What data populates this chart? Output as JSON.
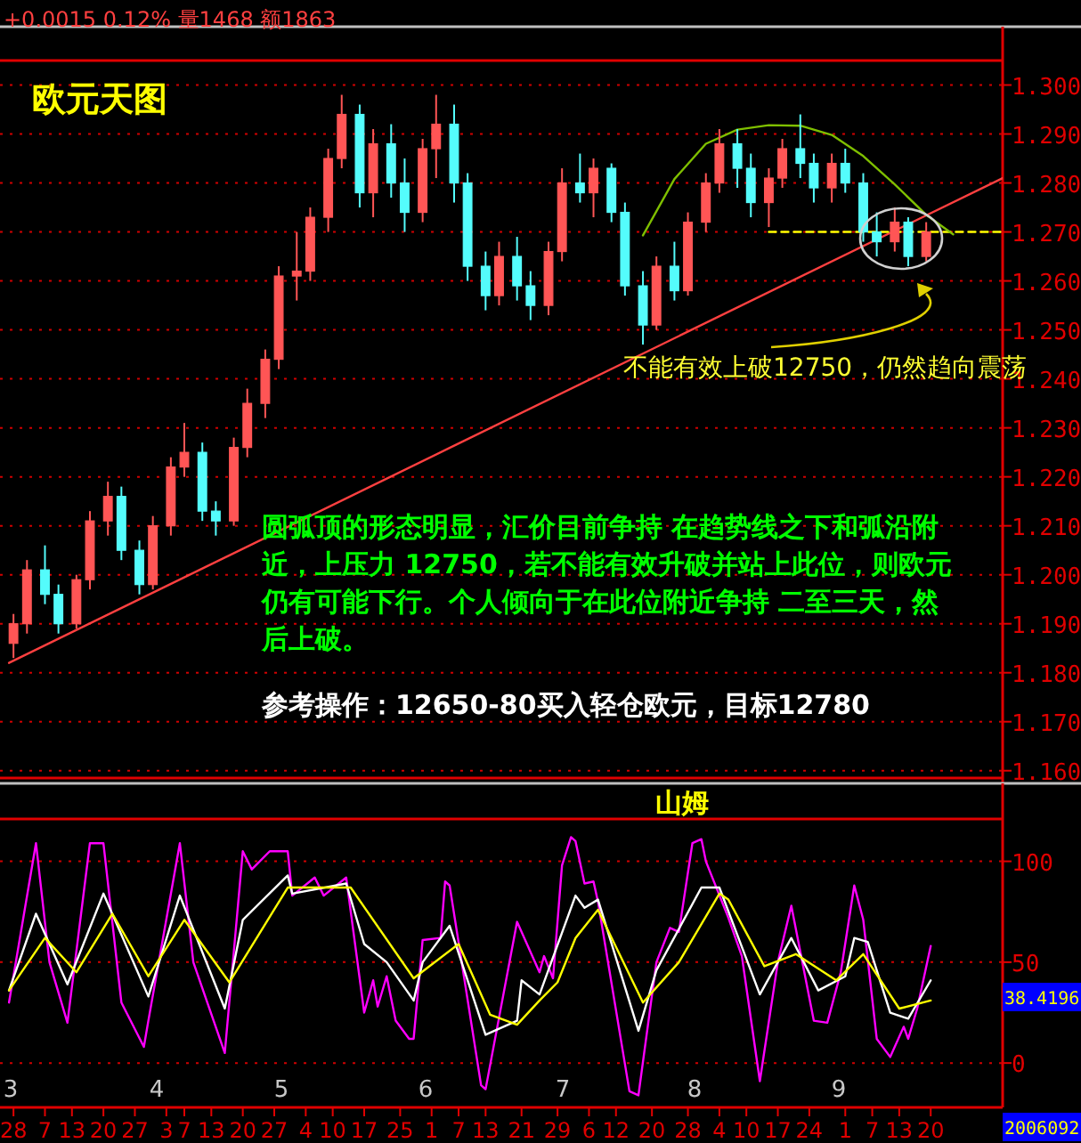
{
  "chart_data": [
    {
      "type": "candlestick",
      "title": "欧元天图",
      "x": [
        "2006-02-28",
        "2006-03-03",
        "2006-03-07",
        "2006-03-10",
        "2006-03-14",
        "2006-03-17",
        "2006-03-21",
        "2006-03-24",
        "2006-03-28",
        "2006-03-31",
        "2006-04-04",
        "2006-04-07",
        "2006-04-11",
        "2006-04-14",
        "2006-04-18",
        "2006-04-21",
        "2006-04-25",
        "2006-04-28",
        "2006-05-02",
        "2006-05-05",
        "2006-05-09",
        "2006-05-12",
        "2006-05-16",
        "2006-05-19",
        "2006-05-23",
        "2006-05-26",
        "2006-05-30",
        "2006-06-02",
        "2006-06-06",
        "2006-06-09",
        "2006-06-13",
        "2006-06-16",
        "2006-06-20",
        "2006-06-23",
        "2006-06-27",
        "2006-06-30",
        "2006-07-04",
        "2006-07-07",
        "2006-07-11",
        "2006-07-14",
        "2006-07-18",
        "2006-07-21",
        "2006-07-25",
        "2006-07-28",
        "2006-08-01",
        "2006-08-04",
        "2006-08-08",
        "2006-08-11",
        "2006-08-15",
        "2006-08-18",
        "2006-08-22",
        "2006-08-25",
        "2006-08-29",
        "2006-09-01",
        "2006-09-05",
        "2006-09-08",
        "2006-09-12",
        "2006-09-15",
        "2006-09-19"
      ],
      "ohlc": [
        [
          1.186,
          1.192,
          1.183,
          1.19
        ],
        [
          1.19,
          1.203,
          1.188,
          1.201
        ],
        [
          1.201,
          1.206,
          1.194,
          1.196
        ],
        [
          1.196,
          1.198,
          1.188,
          1.19
        ],
        [
          1.19,
          1.2,
          1.189,
          1.199
        ],
        [
          1.199,
          1.213,
          1.197,
          1.211
        ],
        [
          1.211,
          1.219,
          1.208,
          1.216
        ],
        [
          1.216,
          1.218,
          1.203,
          1.205
        ],
        [
          1.205,
          1.207,
          1.196,
          1.198
        ],
        [
          1.198,
          1.212,
          1.197,
          1.21
        ],
        [
          1.21,
          1.224,
          1.208,
          1.222
        ],
        [
          1.222,
          1.231,
          1.22,
          1.225
        ],
        [
          1.225,
          1.227,
          1.211,
          1.213
        ],
        [
          1.213,
          1.215,
          1.208,
          1.211
        ],
        [
          1.211,
          1.228,
          1.21,
          1.226
        ],
        [
          1.226,
          1.238,
          1.224,
          1.235
        ],
        [
          1.235,
          1.246,
          1.232,
          1.244
        ],
        [
          1.244,
          1.263,
          1.242,
          1.261
        ],
        [
          1.261,
          1.27,
          1.256,
          1.262
        ],
        [
          1.262,
          1.275,
          1.26,
          1.273
        ],
        [
          1.273,
          1.287,
          1.27,
          1.285
        ],
        [
          1.285,
          1.298,
          1.283,
          1.294
        ],
        [
          1.294,
          1.296,
          1.275,
          1.278
        ],
        [
          1.278,
          1.291,
          1.273,
          1.288
        ],
        [
          1.288,
          1.292,
          1.277,
          1.28
        ],
        [
          1.28,
          1.285,
          1.27,
          1.274
        ],
        [
          1.274,
          1.289,
          1.272,
          1.287
        ],
        [
          1.287,
          1.298,
          1.281,
          1.292
        ],
        [
          1.292,
          1.296,
          1.276,
          1.28
        ],
        [
          1.28,
          1.282,
          1.26,
          1.263
        ],
        [
          1.263,
          1.266,
          1.254,
          1.257
        ],
        [
          1.257,
          1.268,
          1.255,
          1.265
        ],
        [
          1.265,
          1.269,
          1.256,
          1.259
        ],
        [
          1.259,
          1.262,
          1.252,
          1.255
        ],
        [
          1.255,
          1.268,
          1.253,
          1.266
        ],
        [
          1.266,
          1.283,
          1.264,
          1.28
        ],
        [
          1.28,
          1.286,
          1.276,
          1.278
        ],
        [
          1.278,
          1.285,
          1.273,
          1.283
        ],
        [
          1.283,
          1.284,
          1.272,
          1.274
        ],
        [
          1.274,
          1.276,
          1.257,
          1.259
        ],
        [
          1.259,
          1.262,
          1.247,
          1.251
        ],
        [
          1.251,
          1.265,
          1.25,
          1.263
        ],
        [
          1.263,
          1.268,
          1.256,
          1.258
        ],
        [
          1.258,
          1.274,
          1.257,
          1.272
        ],
        [
          1.272,
          1.282,
          1.27,
          1.28
        ],
        [
          1.28,
          1.291,
          1.278,
          1.288
        ],
        [
          1.288,
          1.291,
          1.279,
          1.283
        ],
        [
          1.283,
          1.286,
          1.273,
          1.276
        ],
        [
          1.276,
          1.283,
          1.271,
          1.281
        ],
        [
          1.281,
          1.289,
          1.279,
          1.287
        ],
        [
          1.287,
          1.294,
          1.281,
          1.284
        ],
        [
          1.284,
          1.286,
          1.276,
          1.279
        ],
        [
          1.279,
          1.286,
          1.276,
          1.284
        ],
        [
          1.284,
          1.287,
          1.278,
          1.28
        ],
        [
          1.28,
          1.282,
          1.268,
          1.27
        ],
        [
          1.27,
          1.274,
          1.265,
          1.268
        ],
        [
          1.268,
          1.275,
          1.266,
          1.272
        ],
        [
          1.272,
          1.273,
          1.263,
          1.265
        ],
        [
          1.265,
          1.272,
          1.264,
          1.27
        ]
      ],
      "colors": [
        "#ff5555",
        "#ff5555",
        "#54fcfc",
        "#54fcfc",
        "#ff5555",
        "#ff5555",
        "#ff5555",
        "#54fcfc",
        "#54fcfc",
        "#ff5555",
        "#ff5555",
        "#ff5555",
        "#54fcfc",
        "#54fcfc",
        "#ff5555",
        "#ff5555",
        "#ff5555",
        "#ff5555",
        "#ff5555",
        "#ff5555",
        "#ff5555",
        "#ff5555",
        "#54fcfc",
        "#ff5555",
        "#54fcfc",
        "#54fcfc",
        "#ff5555",
        "#ff5555",
        "#54fcfc",
        "#54fcfc",
        "#54fcfc",
        "#ff5555",
        "#54fcfc",
        "#54fcfc",
        "#ff5555",
        "#ff5555",
        "#54fcfc",
        "#ff5555",
        "#54fcfc",
        "#54fcfc",
        "#54fcfc",
        "#ff5555",
        "#54fcfc",
        "#ff5555",
        "#ff5555",
        "#ff5555",
        "#54fcfc",
        "#54fcfc",
        "#ff5555",
        "#ff5555",
        "#54fcfc",
        "#54fcfc",
        "#ff5555",
        "#54fcfc",
        "#54fcfc",
        "#54fcfc",
        "#ff5555",
        "#54fcfc",
        "#ff5555"
      ],
      "series": [
        {
          "type": "line",
          "color": "#ff4040",
          "x": [
            "2006-02-27",
            "2006-10-06"
          ],
          "values": [
            1.182,
            1.281
          ]
        },
        {
          "type": "line",
          "color": "#ffff00",
          "line_style": "dashed",
          "x": [
            "2006-08-15",
            "2006-10-06"
          ],
          "values": [
            1.27,
            1.27
          ]
        },
        {
          "type": "line",
          "color": "#7fbf00",
          "x": [
            "2006-07-18",
            "2006-07-25",
            "2006-08-01",
            "2006-08-08",
            "2006-08-15",
            "2006-08-22",
            "2006-08-29",
            "2006-09-05",
            "2006-09-12",
            "2006-09-19",
            "2006-09-25"
          ],
          "values": [
            1.2693,
            1.2808,
            1.288,
            1.2909,
            1.2918,
            1.2917,
            1.2898,
            1.2855,
            1.2797,
            1.2735,
            1.2695
          ]
        }
      ],
      "xlim": [
        "2006-02-25",
        "2006-10-06"
      ],
      "ylim": [
        1.1585,
        1.305
      ],
      "yticks": [
        {
          "value": 1.16,
          "label": "1.160"
        },
        {
          "value": 1.17,
          "label": "1.170"
        },
        {
          "value": 1.18,
          "label": "1.180"
        },
        {
          "value": 1.19,
          "label": "1.190"
        },
        {
          "value": 1.2,
          "label": "1.200"
        },
        {
          "value": 1.21,
          "label": "1.210"
        },
        {
          "value": 1.22,
          "label": "1.220"
        },
        {
          "value": 1.23,
          "label": "1.230"
        },
        {
          "value": 1.24,
          "label": "1.240"
        },
        {
          "value": 1.25,
          "label": "1.250"
        },
        {
          "value": 1.26,
          "label": "1.260"
        },
        {
          "value": 1.27,
          "label": "1.270"
        },
        {
          "value": 1.28,
          "label": "1.280"
        },
        {
          "value": 1.29,
          "label": "1.290"
        },
        {
          "value": 1.3,
          "label": "1.300"
        }
      ],
      "tick_labels": "y",
      "grid": "y",
      "annotations": [
        "+0.0015 0.12% 量1468 额1863",
        "不能有效上破12750，仍然趋向震荡",
        "圆弧顶的形态明显，汇价目前争持 在趋势线之下和弧沿附近，上压力 12750，若不能有效升破并站上此位，则欧元仍有可能下行。个人倾向于在此位附近争持 二至三天，然后上破。",
        "参考操作：12650-80买入轻仓欧元，目标12780"
      ]
    },
    {
      "type": "line",
      "title": "山姆",
      "series": [
        {
          "color": "#ff00ff",
          "x": [
            "2006-02-27",
            "2006-03-05",
            "2006-03-08",
            "2006-03-12",
            "2006-03-17",
            "2006-03-20",
            "2006-03-24",
            "2006-03-29",
            "2006-03-30",
            "2006-04-06",
            "2006-04-09",
            "2006-04-16",
            "2006-04-20",
            "2006-04-22",
            "2006-04-26",
            "2006-04-30",
            "2006-05-01",
            "2006-05-06",
            "2006-05-08",
            "2006-05-13",
            "2006-05-17",
            "2006-05-19",
            "2006-05-20",
            "2006-05-22",
            "2006-05-24",
            "2006-05-27",
            "2006-05-28",
            "2006-05-30",
            "2006-06-03",
            "2006-06-04",
            "2006-06-05",
            "2006-06-12",
            "2006-06-13",
            "2006-06-20",
            "2006-06-25",
            "2006-06-26",
            "2006-06-28",
            "2006-06-30",
            "2006-07-02",
            "2006-07-03",
            "2006-07-05",
            "2006-07-07",
            "2006-07-08",
            "2006-07-15",
            "2006-07-17",
            "2006-07-21",
            "2006-07-24",
            "2006-07-26",
            "2006-07-29",
            "2006-07-31",
            "2006-08-01",
            "2006-08-06",
            "2006-08-09",
            "2006-08-13",
            "2006-08-17",
            "2006-08-20",
            "2006-08-25",
            "2006-08-28",
            "2006-08-31",
            "2006-09-03",
            "2006-09-05",
            "2006-09-08",
            "2006-09-11",
            "2006-09-14",
            "2006-09-15",
            "2006-09-17",
            "2006-09-20"
          ],
          "values": [
            30,
            109,
            50,
            20,
            109,
            109,
            30,
            8,
            21,
            109,
            50,
            5,
            105,
            96,
            105,
            105,
            83,
            92,
            83,
            92,
            25,
            41,
            28,
            43,
            21,
            12,
            12,
            61,
            62,
            90,
            88,
            -11,
            -13,
            70,
            45,
            53,
            42,
            98,
            112,
            110,
            89,
            90,
            80,
            -14,
            -16,
            50,
            67,
            65,
            109,
            111,
            100,
            72,
            53,
            -9,
            50,
            78,
            21,
            20,
            45,
            88,
            71,
            12,
            3,
            18,
            12,
            27,
            58
          ]
        },
        {
          "color": "#ffffff",
          "x": [
            "2006-02-27",
            "2006-03-05",
            "2006-03-12",
            "2006-03-20",
            "2006-03-30",
            "2006-04-06",
            "2006-04-16",
            "2006-04-20",
            "2006-04-30",
            "2006-05-01",
            "2006-05-13",
            "2006-05-17",
            "2006-05-22",
            "2006-05-28",
            "2006-05-30",
            "2006-06-05",
            "2006-06-13",
            "2006-06-20",
            "2006-06-21",
            "2006-06-25",
            "2006-07-03",
            "2006-07-05",
            "2006-07-08",
            "2006-07-17",
            "2006-07-21",
            "2006-07-31",
            "2006-08-04",
            "2006-08-13",
            "2006-08-20",
            "2006-08-26",
            "2006-09-01",
            "2006-09-03",
            "2006-09-06",
            "2006-09-11",
            "2006-09-15",
            "2006-09-20"
          ],
          "values": [
            36,
            74,
            39,
            84,
            33,
            83,
            27,
            71,
            93,
            84,
            89,
            59,
            50,
            31,
            50,
            68,
            14,
            21,
            41,
            34,
            83,
            77,
            81,
            16,
            46,
            87,
            87,
            34,
            62,
            36,
            43,
            62,
            60,
            25,
            22,
            41
          ]
        },
        {
          "color": "#ffff00",
          "x": [
            "2006-02-27",
            "2006-03-07",
            "2006-03-14",
            "2006-03-22",
            "2006-03-30",
            "2006-04-07",
            "2006-04-17",
            "2006-04-30",
            "2006-05-14",
            "2006-05-28",
            "2006-06-07",
            "2006-06-14",
            "2006-06-20",
            "2006-06-25",
            "2006-06-29",
            "2006-07-03",
            "2006-07-08",
            "2006-07-18",
            "2006-07-26",
            "2006-08-04",
            "2006-08-06",
            "2006-08-14",
            "2006-08-21",
            "2006-08-30",
            "2006-09-05",
            "2006-09-13",
            "2006-09-20"
          ],
          "values": [
            36,
            62,
            45,
            74,
            43,
            71,
            40,
            87,
            87,
            42,
            59,
            24,
            19,
            31,
            40,
            62,
            76,
            30,
            50,
            84,
            81,
            48,
            54,
            41,
            54,
            27,
            31
          ]
        }
      ],
      "xlim": [
        "2006-02-25",
        "2006-10-06"
      ],
      "ylim": [
        -22,
        121
      ],
      "yticks": [
        0,
        50,
        100
      ],
      "xticks": [
        {
          "value": "2006-02-28",
          "label": "28"
        },
        {
          "value": "2006-03-07",
          "label": "7"
        },
        {
          "value": "2006-03-13",
          "label": "13"
        },
        {
          "value": "2006-03-20",
          "label": "20"
        },
        {
          "value": "2006-03-27",
          "label": "27"
        },
        {
          "value": "2006-04-03",
          "label": "3"
        },
        {
          "value": "2006-04-07",
          "label": "7"
        },
        {
          "value": "2006-04-13",
          "label": "13"
        },
        {
          "value": "2006-04-20",
          "label": "20"
        },
        {
          "value": "2006-04-27",
          "label": "27"
        },
        {
          "value": "2006-05-04",
          "label": "4"
        },
        {
          "value": "2006-05-10",
          "label": "10"
        },
        {
          "value": "2006-05-17",
          "label": "17"
        },
        {
          "value": "2006-05-25",
          "label": "25"
        },
        {
          "value": "2006-06-01",
          "label": "1"
        },
        {
          "value": "2006-06-07",
          "label": "7"
        },
        {
          "value": "2006-06-13",
          "label": "13"
        },
        {
          "value": "2006-06-21",
          "label": "21"
        },
        {
          "value": "2006-06-29",
          "label": "29"
        },
        {
          "value": "2006-07-06",
          "label": "6"
        },
        {
          "value": "2006-07-12",
          "label": "12"
        },
        {
          "value": "2006-07-20",
          "label": "20"
        },
        {
          "value": "2006-07-28",
          "label": "28"
        },
        {
          "value": "2006-08-04",
          "label": "4"
        },
        {
          "value": "2006-08-10",
          "label": "10"
        },
        {
          "value": "2006-08-17",
          "label": "17"
        },
        {
          "value": "2006-08-24",
          "label": "24"
        },
        {
          "value": "2006-09-01",
          "label": "1"
        },
        {
          "value": "2006-09-07",
          "label": "7"
        },
        {
          "value": "2006-09-13",
          "label": "13"
        },
        {
          "value": "2006-09-20",
          "label": "20"
        }
      ],
      "grid": "y",
      "annotations": [
        "3",
        "4",
        "5",
        "6",
        "7",
        "8",
        "9",
        "38.4196",
        "2006092"
      ]
    }
  ]
}
